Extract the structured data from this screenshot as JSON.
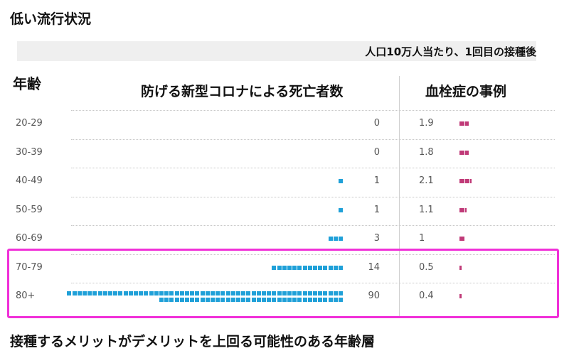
{
  "title": "低い流行状況",
  "subtitle": "人口10万人当たり、1回目の接種後",
  "footer": "接種するメリットがデメリットを上回る可能性のある年齢層",
  "colors": {
    "deaths": "#1fa0d8",
    "clots": "#c03a78",
    "highlight": "#f030d8"
  },
  "chart_data": {
    "type": "bar",
    "ylabel": "年齢",
    "categories": [
      "20-29",
      "30-39",
      "40-49",
      "50-59",
      "60-69",
      "70-79",
      "80+"
    ],
    "series": [
      {
        "name": "防げる新型コロナによる死亡者数",
        "values": [
          0,
          0,
          1,
          1,
          3,
          14,
          90
        ]
      },
      {
        "name": "血栓症の事例",
        "values": [
          1.9,
          1.8,
          2.1,
          1.1,
          1,
          0.5,
          0.4
        ]
      }
    ],
    "value_labels": {
      "deaths": [
        "0",
        "0",
        "1",
        "1",
        "3",
        "14",
        "90"
      ],
      "clots": [
        "1.9",
        "1.8",
        "2.1",
        "1.1",
        "1",
        "0.5",
        "0.4"
      ]
    },
    "highlighted_categories": [
      "70-79",
      "80+"
    ]
  }
}
